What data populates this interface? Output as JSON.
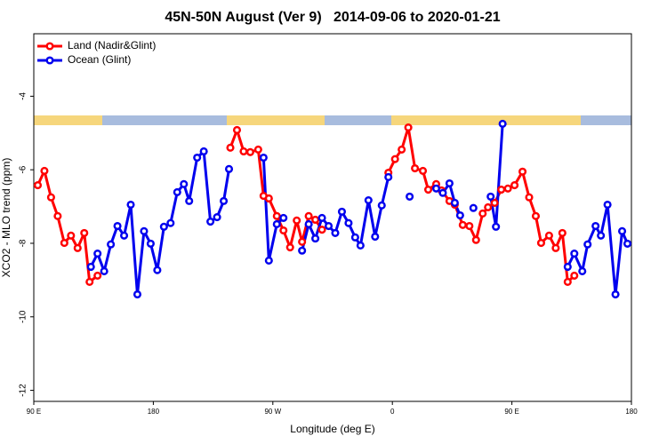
{
  "chart_data": {
    "type": "line",
    "title": "45N-50N August (Ver 9)   2014-09-06 to 2020-01-21",
    "x_label": "Longitude (deg E)",
    "y_label": "XCO2 - MLO trend (ppm)",
    "xlim": [
      90,
      540
    ],
    "xticks": [
      {
        "value": 90,
        "label": "90 E"
      },
      {
        "value": 180,
        "label": "180"
      },
      {
        "value": 270,
        "label": "90 W"
      },
      {
        "value": 360,
        "label": "0"
      },
      {
        "value": 450,
        "label": "90 E"
      },
      {
        "value": 540,
        "label": "180"
      }
    ],
    "ylim": [
      -12.3,
      -2.3
    ],
    "yticks": [
      -12,
      -10,
      -8,
      -6,
      -4
    ],
    "legend": "top-left",
    "series": [
      {
        "name": "Land (Nadir&Glint)",
        "color": "#ff0000",
        "x": [
          93,
          98,
          103,
          108,
          113,
          118,
          123,
          128,
          132,
          138,
          null,
          238,
          243,
          248,
          253,
          259,
          263,
          267,
          273,
          278,
          283,
          288,
          292,
          297,
          302,
          307,
          null,
          357,
          362,
          367,
          372,
          377,
          383,
          387,
          393,
          397,
          403,
          407,
          413,
          418,
          423,
          428,
          432,
          437,
          442,
          447,
          452,
          458,
          463,
          468,
          472,
          478,
          483,
          488,
          492,
          497
        ],
        "values": [
          -6.42,
          -6.03,
          -6.75,
          -7.26,
          -7.99,
          -7.79,
          -8.13,
          -7.72,
          -9.05,
          -8.88,
          null,
          -5.4,
          -4.92,
          -5.5,
          -5.52,
          -5.45,
          -6.71,
          -6.78,
          -7.26,
          -7.65,
          -8.11,
          -7.38,
          -7.96,
          -7.26,
          -7.36,
          -7.63,
          null,
          -6.08,
          -5.71,
          -5.45,
          -4.85,
          -5.96,
          -6.03,
          -6.54,
          -6.39,
          -6.56,
          -6.85,
          -6.95,
          -7.5,
          -7.53,
          -7.91,
          -7.19,
          -7.02,
          -6.9,
          -6.54,
          -6.51,
          -6.42,
          -6.05,
          -6.75,
          -7.26,
          -7.99,
          -7.79,
          -8.13,
          -7.72,
          -9.05,
          -8.88
        ]
      },
      {
        "name": "Ocean (Glint)",
        "color": "#0000ee",
        "x": [
          133,
          138,
          143,
          148,
          153,
          158,
          163,
          168,
          173,
          178,
          183,
          188,
          193,
          198,
          203,
          207,
          213,
          218,
          223,
          228,
          233,
          237,
          null,
          263,
          267,
          273,
          278,
          null,
          292,
          297,
          302,
          307,
          312,
          317,
          322,
          327,
          332,
          336,
          342,
          347,
          352,
          357,
          null,
          373,
          null,
          393,
          398,
          403,
          407,
          411,
          null,
          421,
          null,
          434,
          438,
          443,
          null,
          492,
          497,
          503,
          507,
          513,
          517,
          522,
          528,
          533,
          537
        ],
        "values": [
          -8.64,
          -8.28,
          -8.76,
          -8.03,
          -7.53,
          -7.79,
          -6.95,
          -9.39,
          -7.67,
          -8.01,
          -8.73,
          -7.55,
          -7.45,
          -6.61,
          -6.39,
          -6.85,
          -5.67,
          -5.5,
          -7.41,
          -7.29,
          -6.85,
          -5.98,
          null,
          -5.67,
          -8.47,
          -7.48,
          -7.31,
          null,
          -8.2,
          -7.48,
          -7.87,
          -7.31,
          -7.53,
          -7.72,
          -7.14,
          -7.45,
          -7.84,
          -8.06,
          -6.83,
          -7.82,
          -6.97,
          -6.2,
          null,
          -6.73,
          null,
          -6.51,
          -6.63,
          -6.37,
          -6.9,
          -7.24,
          null,
          -7.04,
          null,
          -6.73,
          -7.55,
          -4.75,
          null,
          -8.64,
          -8.28,
          -8.76,
          -8.03,
          -7.53,
          -7.79,
          -6.95,
          -9.39,
          -7.67,
          -8.01
        ]
      }
    ]
  }
}
